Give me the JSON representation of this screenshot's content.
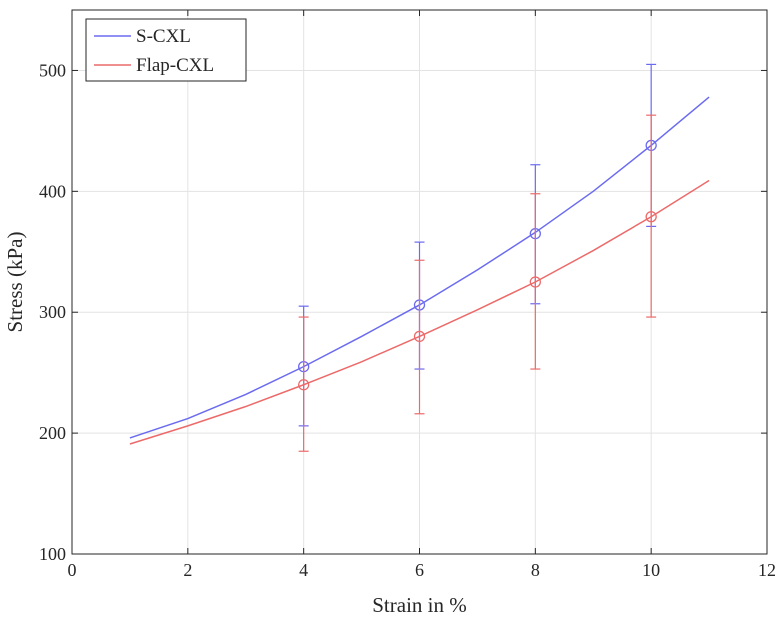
{
  "chart_data": {
    "type": "line",
    "xlabel": "Strain in %",
    "ylabel": "Stress (kPa)",
    "xlim": [
      0,
      12
    ],
    "ylim": [
      100,
      550
    ],
    "xticks": [
      0,
      2,
      4,
      6,
      8,
      10,
      12
    ],
    "yticks": [
      100,
      200,
      300,
      400,
      500
    ],
    "x_tick_labels": [
      "0",
      "2",
      "4",
      "6",
      "8",
      "10",
      "12"
    ],
    "y_tick_labels": [
      "100",
      "200",
      "300",
      "400",
      "500"
    ],
    "grid": true,
    "legend_position": "top-left",
    "series": [
      {
        "name": "S-CXL",
        "color": "#6b6bf0",
        "fit_curve": {
          "x": [
            1,
            2,
            3,
            4,
            5,
            6,
            7,
            8,
            9,
            10,
            11
          ],
          "y": [
            196,
            212,
            232,
            255,
            280,
            306,
            335,
            366,
            400,
            438,
            478
          ]
        },
        "points": [
          {
            "x": 4,
            "y": 255,
            "err_low": 206,
            "err_high": 305
          },
          {
            "x": 6,
            "y": 306,
            "err_low": 253,
            "err_high": 358
          },
          {
            "x": 8,
            "y": 365,
            "err_low": 307,
            "err_high": 422
          },
          {
            "x": 10,
            "y": 438,
            "err_low": 371,
            "err_high": 505
          }
        ]
      },
      {
        "name": "Flap-CXL",
        "color": "#ec6a6a",
        "fit_curve": {
          "x": [
            1,
            2,
            3,
            4,
            5,
            6,
            7,
            8,
            9,
            10,
            11
          ],
          "y": [
            191,
            206,
            222,
            240,
            259,
            280,
            302,
            325,
            351,
            379,
            409
          ]
        },
        "points": [
          {
            "x": 4,
            "y": 240,
            "err_low": 185,
            "err_high": 296
          },
          {
            "x": 6,
            "y": 280,
            "err_low": 216,
            "err_high": 343
          },
          {
            "x": 8,
            "y": 325,
            "err_low": 253,
            "err_high": 398
          },
          {
            "x": 10,
            "y": 379,
            "err_low": 296,
            "err_high": 463
          }
        ]
      }
    ]
  }
}
